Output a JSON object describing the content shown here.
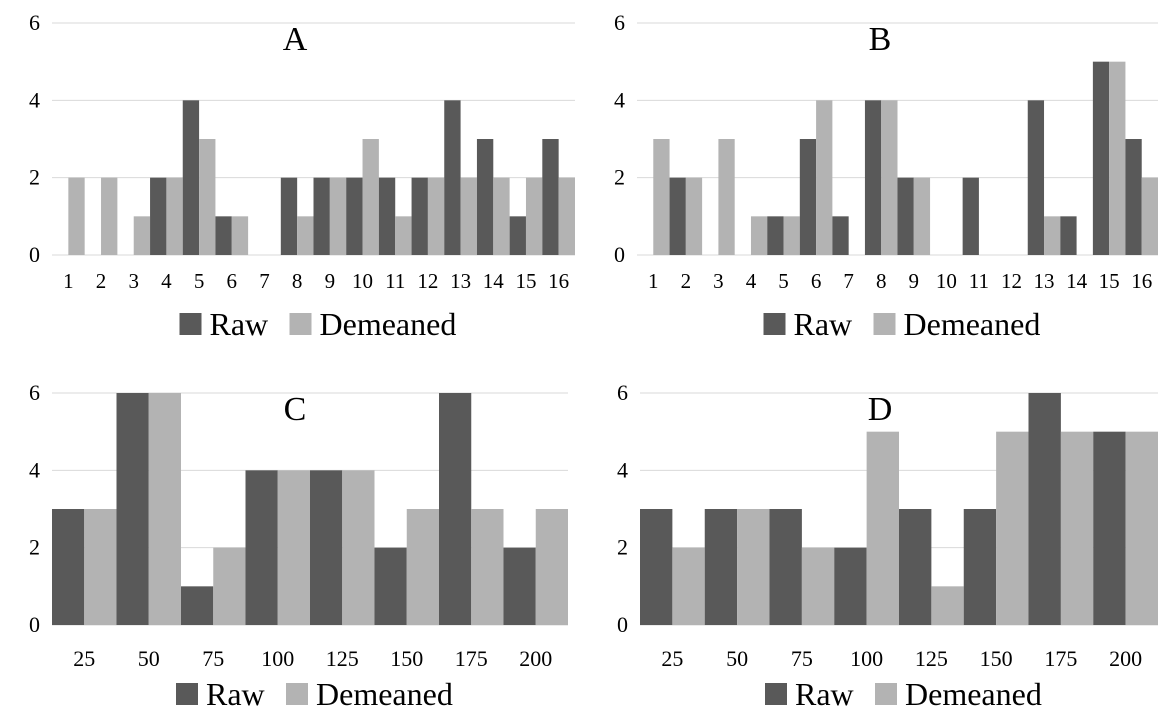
{
  "colors": {
    "raw": "#595959",
    "demeaned": "#b3b3b3",
    "grid": "#d9d9d9",
    "text": "#000000"
  },
  "chart_data": [
    {
      "type": "bar",
      "title": "A",
      "categories": [
        "1",
        "2",
        "3",
        "4",
        "5",
        "6",
        "7",
        "8",
        "9",
        "10",
        "11",
        "12",
        "13",
        "14",
        "15",
        "16"
      ],
      "yticks": [
        "0",
        "2",
        "4",
        "6"
      ],
      "ylim": [
        0,
        6
      ],
      "legend_position": "bottom",
      "series": [
        {
          "name": "Raw",
          "values": [
            0,
            0,
            0,
            2,
            4,
            1,
            0,
            2,
            2,
            2,
            2,
            2,
            4,
            3,
            1,
            3
          ]
        },
        {
          "name": "Demeaned",
          "values": [
            2,
            2,
            1,
            2,
            3,
            1,
            0,
            1,
            2,
            3,
            1,
            2,
            2,
            2,
            2,
            2
          ]
        }
      ]
    },
    {
      "type": "bar",
      "title": "B",
      "categories": [
        "1",
        "2",
        "3",
        "4",
        "5",
        "6",
        "7",
        "8",
        "9",
        "10",
        "11",
        "12",
        "13",
        "14",
        "15",
        "16"
      ],
      "yticks": [
        "0",
        "2",
        "4",
        "6"
      ],
      "ylim": [
        0,
        6
      ],
      "legend_position": "bottom",
      "series": [
        {
          "name": "Raw",
          "values": [
            0,
            2,
            0,
            0,
            1,
            3,
            1,
            4,
            2,
            0,
            2,
            0,
            4,
            1,
            5,
            3
          ]
        },
        {
          "name": "Demeaned",
          "values": [
            3,
            2,
            3,
            1,
            1,
            4,
            0,
            4,
            2,
            0,
            0,
            0,
            1,
            0,
            5,
            2
          ]
        }
      ]
    },
    {
      "type": "bar",
      "title": "C",
      "categories": [
        "25",
        "50",
        "75",
        "100",
        "125",
        "150",
        "175",
        "200"
      ],
      "yticks": [
        "0",
        "2",
        "4",
        "6"
      ],
      "ylim": [
        0,
        6
      ],
      "legend_position": "bottom",
      "series": [
        {
          "name": "Raw",
          "values": [
            3,
            6,
            1,
            4,
            4,
            2,
            6,
            2
          ]
        },
        {
          "name": "Demeaned",
          "values": [
            3,
            6,
            2,
            4,
            4,
            3,
            3,
            3
          ]
        }
      ]
    },
    {
      "type": "bar",
      "title": "D",
      "categories": [
        "25",
        "50",
        "75",
        "100",
        "125",
        "150",
        "175",
        "200"
      ],
      "yticks": [
        "0",
        "2",
        "4",
        "6"
      ],
      "ylim": [
        0,
        6
      ],
      "legend_position": "bottom",
      "series": [
        {
          "name": "Raw",
          "values": [
            3,
            3,
            3,
            2,
            3,
            3,
            6,
            5
          ]
        },
        {
          "name": "Demeaned",
          "values": [
            2,
            3,
            2,
            5,
            1,
            5,
            5,
            5
          ]
        }
      ]
    }
  ]
}
